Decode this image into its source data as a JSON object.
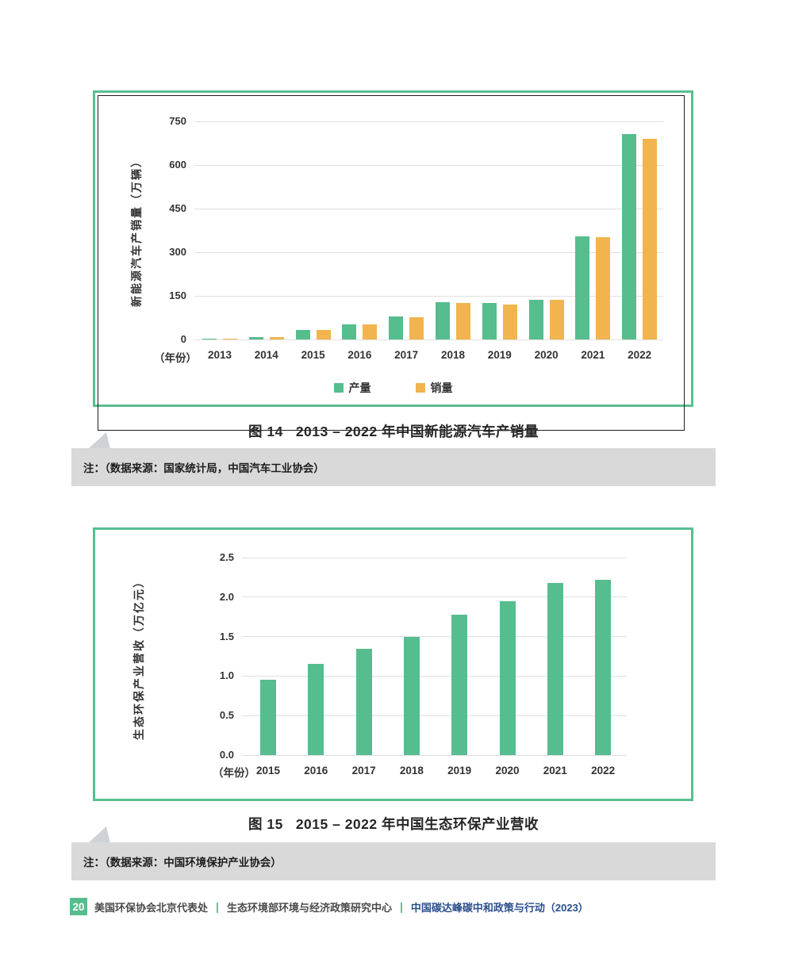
{
  "colors": {
    "green": "#56bd8e",
    "orange": "#f1b44e",
    "chart_border_green": "#5abd90",
    "chart_border_black": "#1f1f1f",
    "grid_line": "#e0e0e0",
    "axis_text": "#333333",
    "caption_text": "#262626",
    "note_background": "#d9d9d9",
    "note_pointer": "#ced2d6",
    "footer_text": "#4a4a4a",
    "footer_report_blue": "#2b4f8c"
  },
  "chart_data": [
    {
      "type": "bar",
      "title": "2013 – 2022 年中国新能源汽车产销量",
      "categories": [
        "2013",
        "2014",
        "2015",
        "2016",
        "2017",
        "2018",
        "2019",
        "2020",
        "2021",
        "2022"
      ],
      "series": [
        {
          "name": "产量",
          "key": "production",
          "color": "#56bd8e",
          "values": [
            1.8,
            7.9,
            34.0,
            51.7,
            79.4,
            127.0,
            124.2,
            136.6,
            354.5,
            705.8
          ]
        },
        {
          "name": "销量",
          "key": "sales",
          "color": "#f1b44e",
          "values": [
            1.8,
            7.5,
            33.1,
            50.7,
            77.7,
            125.6,
            120.6,
            136.7,
            352.1,
            688.7
          ]
        }
      ],
      "xlabel_prefix": "（年份）",
      "ylabel": "新能源汽车产销量（万辆）",
      "yticks": [
        0,
        150,
        300,
        450,
        600,
        750
      ],
      "ylim": [
        0,
        750
      ],
      "grid": true,
      "legend_position": "bottom"
    },
    {
      "type": "bar",
      "title": "2015 – 2022 年中国生态环保产业营收",
      "categories": [
        "2015",
        "2016",
        "2017",
        "2018",
        "2019",
        "2020",
        "2021",
        "2022"
      ],
      "values": [
        0.95,
        1.15,
        1.35,
        1.5,
        1.78,
        1.95,
        2.18,
        2.22
      ],
      "xlabel_prefix": "（年份）",
      "ylabel": "生态环保产业营收（万亿元）",
      "yticks": [
        0,
        0.5,
        1.0,
        1.5,
        2.0,
        2.5
      ],
      "ylim": [
        0,
        2.5
      ],
      "grid": true,
      "legend_position": "none"
    }
  ],
  "figures": [
    {
      "label": "图 14",
      "title": "2013 – 2022 年中国新能源汽车产销量",
      "note": "注：（数据来源：国家统计局，中国汽车工业协会）"
    },
    {
      "label": "图 15",
      "title": "2015 – 2022 年中国生态环保产业营收",
      "note": "注：（数据来源：中国环境保护产业协会）"
    }
  ],
  "footer": {
    "page_number": "20",
    "org1": "美国环保协会北京代表处",
    "separator": "|",
    "org2": "生态环境部环境与经济政策研究中心",
    "report": "中国碳达峰碳中和政策与行动（2023）"
  }
}
